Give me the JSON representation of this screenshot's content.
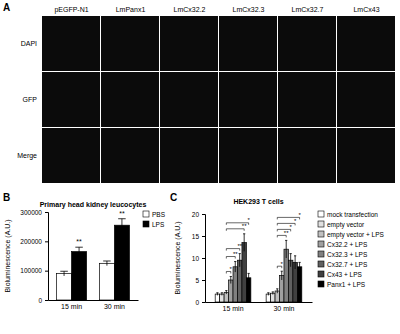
{
  "panel_a": {
    "label": "A",
    "columns": [
      "pEGFP-N1",
      "LmPanx1",
      "LmCx32.2",
      "LmCx32.3",
      "LmCx32.7",
      "LmCx43"
    ],
    "rows": [
      "DAPI",
      "GFP",
      "Merge"
    ]
  },
  "chart_data": [
    {
      "type": "bar",
      "panel": "B",
      "title": "Primary head kidney leucocytes",
      "y_label": "Bioluminescence (A.U.)",
      "categories": [
        "15 min",
        "30 min"
      ],
      "series": [
        {
          "name": "PBS",
          "color": "#ffffff",
          "values": [
            90000,
            125000
          ],
          "errors": [
            8000,
            8000
          ]
        },
        {
          "name": "LPS",
          "color": "#000000",
          "values": [
            165000,
            255000
          ],
          "errors": [
            15000,
            22000
          ]
        }
      ],
      "ylim": [
        0,
        300000
      ],
      "yticks": [
        0,
        100000,
        200000,
        300000
      ],
      "legend": "right",
      "significance": [
        {
          "category": 0,
          "series": 1,
          "label": "**"
        },
        {
          "category": 1,
          "series": 1,
          "label": "**"
        }
      ]
    },
    {
      "type": "bar",
      "panel": "C",
      "title": "HEK293 T cells",
      "y_label": "Bioluminescence (A.U.)",
      "categories": [
        "15 min",
        "30 min"
      ],
      "series": [
        {
          "name": "mock transfection",
          "color": "#ffffff",
          "values": [
            1.8,
            1.8
          ],
          "errors": [
            0.3,
            0.3
          ]
        },
        {
          "name": "empty vector",
          "color": "#e0e0e0",
          "values": [
            1.8,
            2.0
          ],
          "errors": [
            0.3,
            0.3
          ]
        },
        {
          "name": "empty vector + LPS",
          "color": "#c0c0c0",
          "values": [
            2.2,
            2.5
          ],
          "errors": [
            0.4,
            0.5
          ]
        },
        {
          "name": "Cx32.2 + LPS",
          "color": "#a0a0a0",
          "values": [
            5.0,
            6.0
          ],
          "errors": [
            0.8,
            1.0
          ]
        },
        {
          "name": "Cx32.3 + LPS",
          "color": "#808080",
          "values": [
            8.0,
            12.0
          ],
          "errors": [
            1.2,
            2.0
          ]
        },
        {
          "name": "Cx32.7 + LPS",
          "color": "#606060",
          "values": [
            9.5,
            9.5
          ],
          "errors": [
            1.5,
            1.5
          ]
        },
        {
          "name": "Cx43 + LPS",
          "color": "#404040",
          "values": [
            13.5,
            9.0
          ],
          "errors": [
            2.0,
            1.5
          ]
        },
        {
          "name": "Panx1 + LPS",
          "color": "#000000",
          "values": [
            5.5,
            8.0
          ],
          "errors": [
            1.0,
            1.0
          ]
        }
      ],
      "ylim": [
        0,
        20
      ],
      "yticks": [
        0,
        5,
        10,
        15,
        20
      ],
      "legend": "right",
      "significance": [
        {
          "category": 0,
          "from": 2,
          "to": 3,
          "label": "*"
        },
        {
          "category": 0,
          "from": 2,
          "to": 4,
          "label": "**"
        },
        {
          "category": 0,
          "from": 2,
          "to": 5,
          "label": "**"
        },
        {
          "category": 0,
          "from": 2,
          "to": 6,
          "label": "**"
        },
        {
          "category": 0,
          "from": 2,
          "to": 7,
          "label": "*"
        },
        {
          "category": 1,
          "from": 2,
          "to": 3,
          "label": "*"
        },
        {
          "category": 1,
          "from": 2,
          "to": 4,
          "label": "**"
        },
        {
          "category": 1,
          "from": 2,
          "to": 5,
          "label": "*"
        },
        {
          "category": 1,
          "from": 2,
          "to": 6,
          "label": "*"
        },
        {
          "category": 1,
          "from": 2,
          "to": 7,
          "label": "*"
        }
      ]
    }
  ]
}
